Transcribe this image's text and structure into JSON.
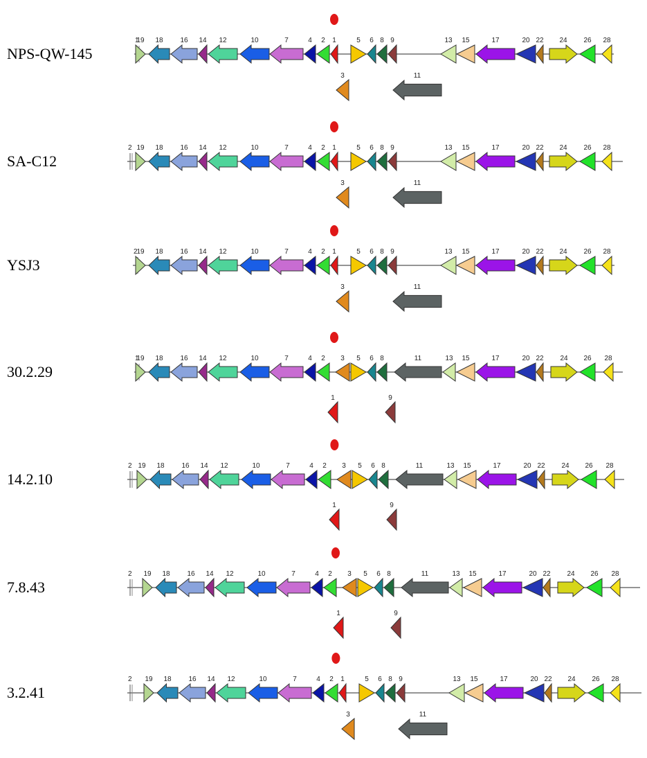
{
  "figure": {
    "gene_colors": {
      "1": "#e01818",
      "2": "#33dd33",
      "3": "#e08a1e",
      "4": "#0a14a6",
      "5": "#f5c800",
      "6": "#19868f",
      "7": "#c86cd2",
      "8": "#1f6e3e",
      "9": "#8b3b3b",
      "10": "#1a5ee6",
      "11": "#5c6363",
      "12": "#4fd49a",
      "13": "#d2eca8",
      "14": "#962a8a",
      "15": "#f6cc90",
      "16": "#8aa3dc",
      "17": "#9b14e8",
      "18": "#2a8ab8",
      "19": "#b4d690",
      "20": "#2436b4",
      "21": "#c8c8c8",
      "22": "#b47a1e",
      "24": "#d6d61a",
      "26": "#22e22a",
      "28": "#f5e21a"
    },
    "marker_color": "#e01818",
    "rows": [
      {
        "label": "NPS-QW-145",
        "main_labels": [
          "1",
          "19",
          "18",
          "16",
          "14",
          "12",
          "10",
          "7",
          "4",
          "2",
          "1",
          "5",
          "6",
          "8",
          "9",
          "13",
          "15",
          "17",
          "20",
          "22",
          "24",
          "26",
          "28"
        ],
        "below_labels": [
          "3",
          "11"
        ]
      },
      {
        "label": "SA-C12",
        "main_labels": [
          "2",
          "19",
          "18",
          "16",
          "14",
          "12",
          "10",
          "7",
          "4",
          "2",
          "1",
          "5",
          "6",
          "8",
          "9",
          "13",
          "15",
          "17",
          "20",
          "22",
          "24",
          "26",
          "28"
        ],
        "below_labels": [
          "3",
          "11"
        ]
      },
      {
        "label": "YSJ3",
        "main_labels": [
          "2",
          "19",
          "18",
          "16",
          "14",
          "12",
          "10",
          "7",
          "4",
          "2",
          "1",
          "5",
          "6",
          "8",
          "9",
          "13",
          "15",
          "17",
          "20",
          "22",
          "24",
          "26",
          "28"
        ],
        "below_labels": [
          "3",
          "11"
        ]
      },
      {
        "label": "30.2.29",
        "main_labels": [
          "1",
          "19",
          "18",
          "16",
          "14",
          "12",
          "10",
          "7",
          "4",
          "2",
          "3",
          "5",
          "6",
          "8",
          "11",
          "13",
          "15",
          "17",
          "20",
          "22",
          "24",
          "26",
          "28"
        ],
        "below_labels": [
          "1",
          "9"
        ]
      },
      {
        "label": "14.2.10",
        "main_labels": [
          "2",
          "19",
          "18",
          "16",
          "14",
          "12",
          "10",
          "7",
          "4",
          "2",
          "3",
          "5",
          "6",
          "8",
          "11",
          "13",
          "15",
          "17",
          "20",
          "22",
          "24",
          "26",
          "28"
        ],
        "below_labels": [
          "1",
          "9"
        ]
      },
      {
        "label": "7.8.43",
        "main_labels": [
          "2",
          "19",
          "18",
          "16",
          "14",
          "12",
          "10",
          "7",
          "4",
          "2",
          "3",
          "5",
          "6",
          "8",
          "11",
          "13",
          "15",
          "17",
          "20",
          "22",
          "24",
          "26",
          "28"
        ],
        "below_labels": [
          "1",
          "9"
        ]
      },
      {
        "label": "3.2.41",
        "main_labels": [
          "2",
          "19",
          "18",
          "16",
          "14",
          "12",
          "10",
          "7",
          "4",
          "2",
          "1",
          "5",
          "6",
          "8",
          "9",
          "13",
          "15",
          "17",
          "20",
          "22",
          "24",
          "26",
          "28"
        ],
        "below_labels": [
          "3",
          "11"
        ]
      }
    ]
  }
}
